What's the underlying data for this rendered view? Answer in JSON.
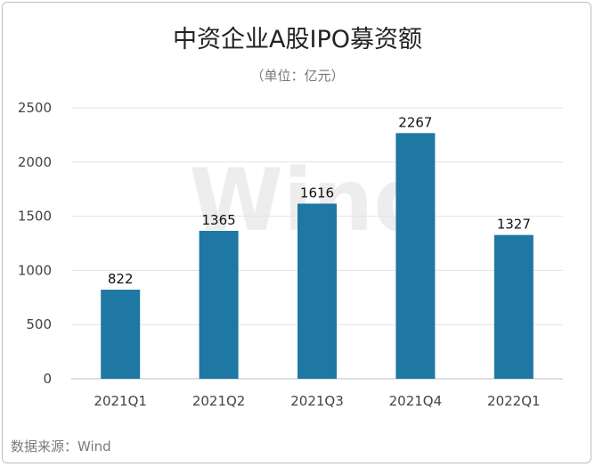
{
  "chart_data": {
    "type": "bar",
    "title": "中资企业A股IPO募资额",
    "subtitle": "（单位：亿元）",
    "categories": [
      "2021Q1",
      "2021Q2",
      "2021Q3",
      "2021Q4",
      "2022Q1"
    ],
    "values": [
      822,
      1365,
      1616,
      2267,
      1327
    ],
    "ylim": [
      0,
      2500
    ],
    "yticks": [
      0,
      500,
      1000,
      1500,
      2000,
      2500
    ],
    "grid": true,
    "bar_color": "#1f77a4",
    "watermark": "Wind",
    "source": "数据来源：Wind"
  }
}
